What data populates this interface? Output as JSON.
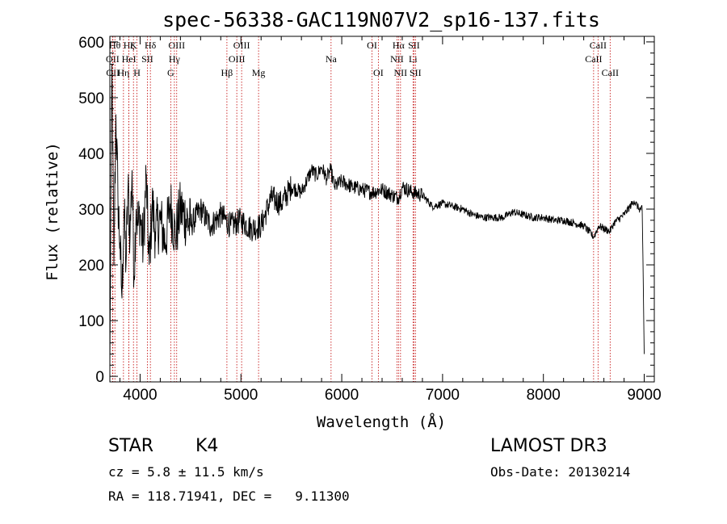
{
  "chart_data": {
    "type": "line",
    "title": "spec-56338-GAC119N07V2_sp16-137.fits",
    "xlabel": "Wavelength (Å)",
    "ylabel": "Flux (relative)",
    "xlim": [
      3700,
      9100
    ],
    "ylim": [
      -10,
      610
    ],
    "xticks": [
      4000,
      5000,
      6000,
      7000,
      8000,
      9000
    ],
    "yticks": [
      0,
      100,
      200,
      300,
      400,
      500,
      600
    ],
    "series": [
      {
        "name": "flux",
        "color": "#000000",
        "x": [
          3700,
          3720,
          3740,
          3760,
          3780,
          3800,
          3820,
          3840,
          3860,
          3880,
          3900,
          3920,
          3940,
          3960,
          3980,
          4000,
          4030,
          4060,
          4090,
          4120,
          4150,
          4200,
          4250,
          4300,
          4350,
          4400,
          4500,
          4600,
          4700,
          4800,
          4900,
          5000,
          5100,
          5200,
          5300,
          5400,
          5500,
          5600,
          5700,
          5750,
          5800,
          5850,
          5890,
          5930,
          6000,
          6100,
          6200,
          6300,
          6400,
          6500,
          6560,
          6600,
          6700,
          6800,
          6900,
          7000,
          7100,
          7200,
          7300,
          7400,
          7500,
          7600,
          7700,
          7800,
          7900,
          8000,
          8100,
          8200,
          8300,
          8400,
          8500,
          8550,
          8600,
          8660,
          8700,
          8800,
          8900,
          8950,
          8980,
          9000
        ],
        "y": [
          0,
          560,
          200,
          470,
          320,
          240,
          140,
          300,
          200,
          340,
          250,
          370,
          180,
          300,
          270,
          290,
          230,
          360,
          200,
          310,
          260,
          280,
          240,
          310,
          250,
          300,
          270,
          300,
          270,
          290,
          270,
          280,
          265,
          270,
          320,
          310,
          340,
          330,
          370,
          360,
          375,
          355,
          370,
          340,
          350,
          340,
          335,
          330,
          335,
          325,
          320,
          340,
          330,
          325,
          305,
          310,
          305,
          300,
          290,
          285,
          285,
          285,
          295,
          290,
          285,
          285,
          280,
          280,
          275,
          270,
          250,
          270,
          265,
          260,
          275,
          290,
          315,
          300,
          300,
          40
        ]
      }
    ],
    "lines": [
      {
        "wl": 3727,
        "label": "OII",
        "row": 1
      },
      {
        "wl": 3730,
        "label": "OII",
        "row": 2
      },
      {
        "wl": 3750,
        "label": "Hθ",
        "row": 0
      },
      {
        "wl": 3835,
        "label": "Hη",
        "row": 2
      },
      {
        "wl": 3889,
        "label": "Hζ",
        "row": 0
      },
      {
        "wl": 3889,
        "label": "HeI",
        "row": 1
      },
      {
        "wl": 3934,
        "label": "K",
        "row": 0
      },
      {
        "wl": 3969,
        "label": "H",
        "row": 2
      },
      {
        "wl": 4072,
        "label": "SII",
        "row": 1
      },
      {
        "wl": 4102,
        "label": "Hδ",
        "row": 0
      },
      {
        "wl": 4304,
        "label": "G",
        "row": 2
      },
      {
        "wl": 4340,
        "label": "Hγ",
        "row": 1
      },
      {
        "wl": 4363,
        "label": "OIII",
        "row": 0
      },
      {
        "wl": 4861,
        "label": "Hβ",
        "row": 2
      },
      {
        "wl": 4959,
        "label": "OIII",
        "row": 1
      },
      {
        "wl": 5007,
        "label": "OIII",
        "row": 0
      },
      {
        "wl": 5175,
        "label": "Mg",
        "row": 2
      },
      {
        "wl": 5894,
        "label": "Na",
        "row": 1
      },
      {
        "wl": 6300,
        "label": "OI",
        "row": 0
      },
      {
        "wl": 6363,
        "label": "OI",
        "row": 2
      },
      {
        "wl": 6548,
        "label": "NII",
        "row": 1
      },
      {
        "wl": 6563,
        "label": "Hα",
        "row": 0
      },
      {
        "wl": 6583,
        "label": "NII",
        "row": 2
      },
      {
        "wl": 6707,
        "label": "Li",
        "row": 1
      },
      {
        "wl": 6716,
        "label": "SII",
        "row": 0
      },
      {
        "wl": 6731,
        "label": "SII",
        "row": 2
      },
      {
        "wl": 8498,
        "label": "CaII",
        "row": 1
      },
      {
        "wl": 8542,
        "label": "CaII",
        "row": 0
      },
      {
        "wl": 8662,
        "label": "CaII",
        "row": 2
      }
    ]
  },
  "info": {
    "class": "STAR",
    "subclass": "K4",
    "survey": "LAMOST DR3",
    "cz": "cz = 5.8 ± 11.5 km/s",
    "obs_date": "Obs-Date: 20130214",
    "coords": "RA = 118.71941, DEC =   9.11300"
  }
}
